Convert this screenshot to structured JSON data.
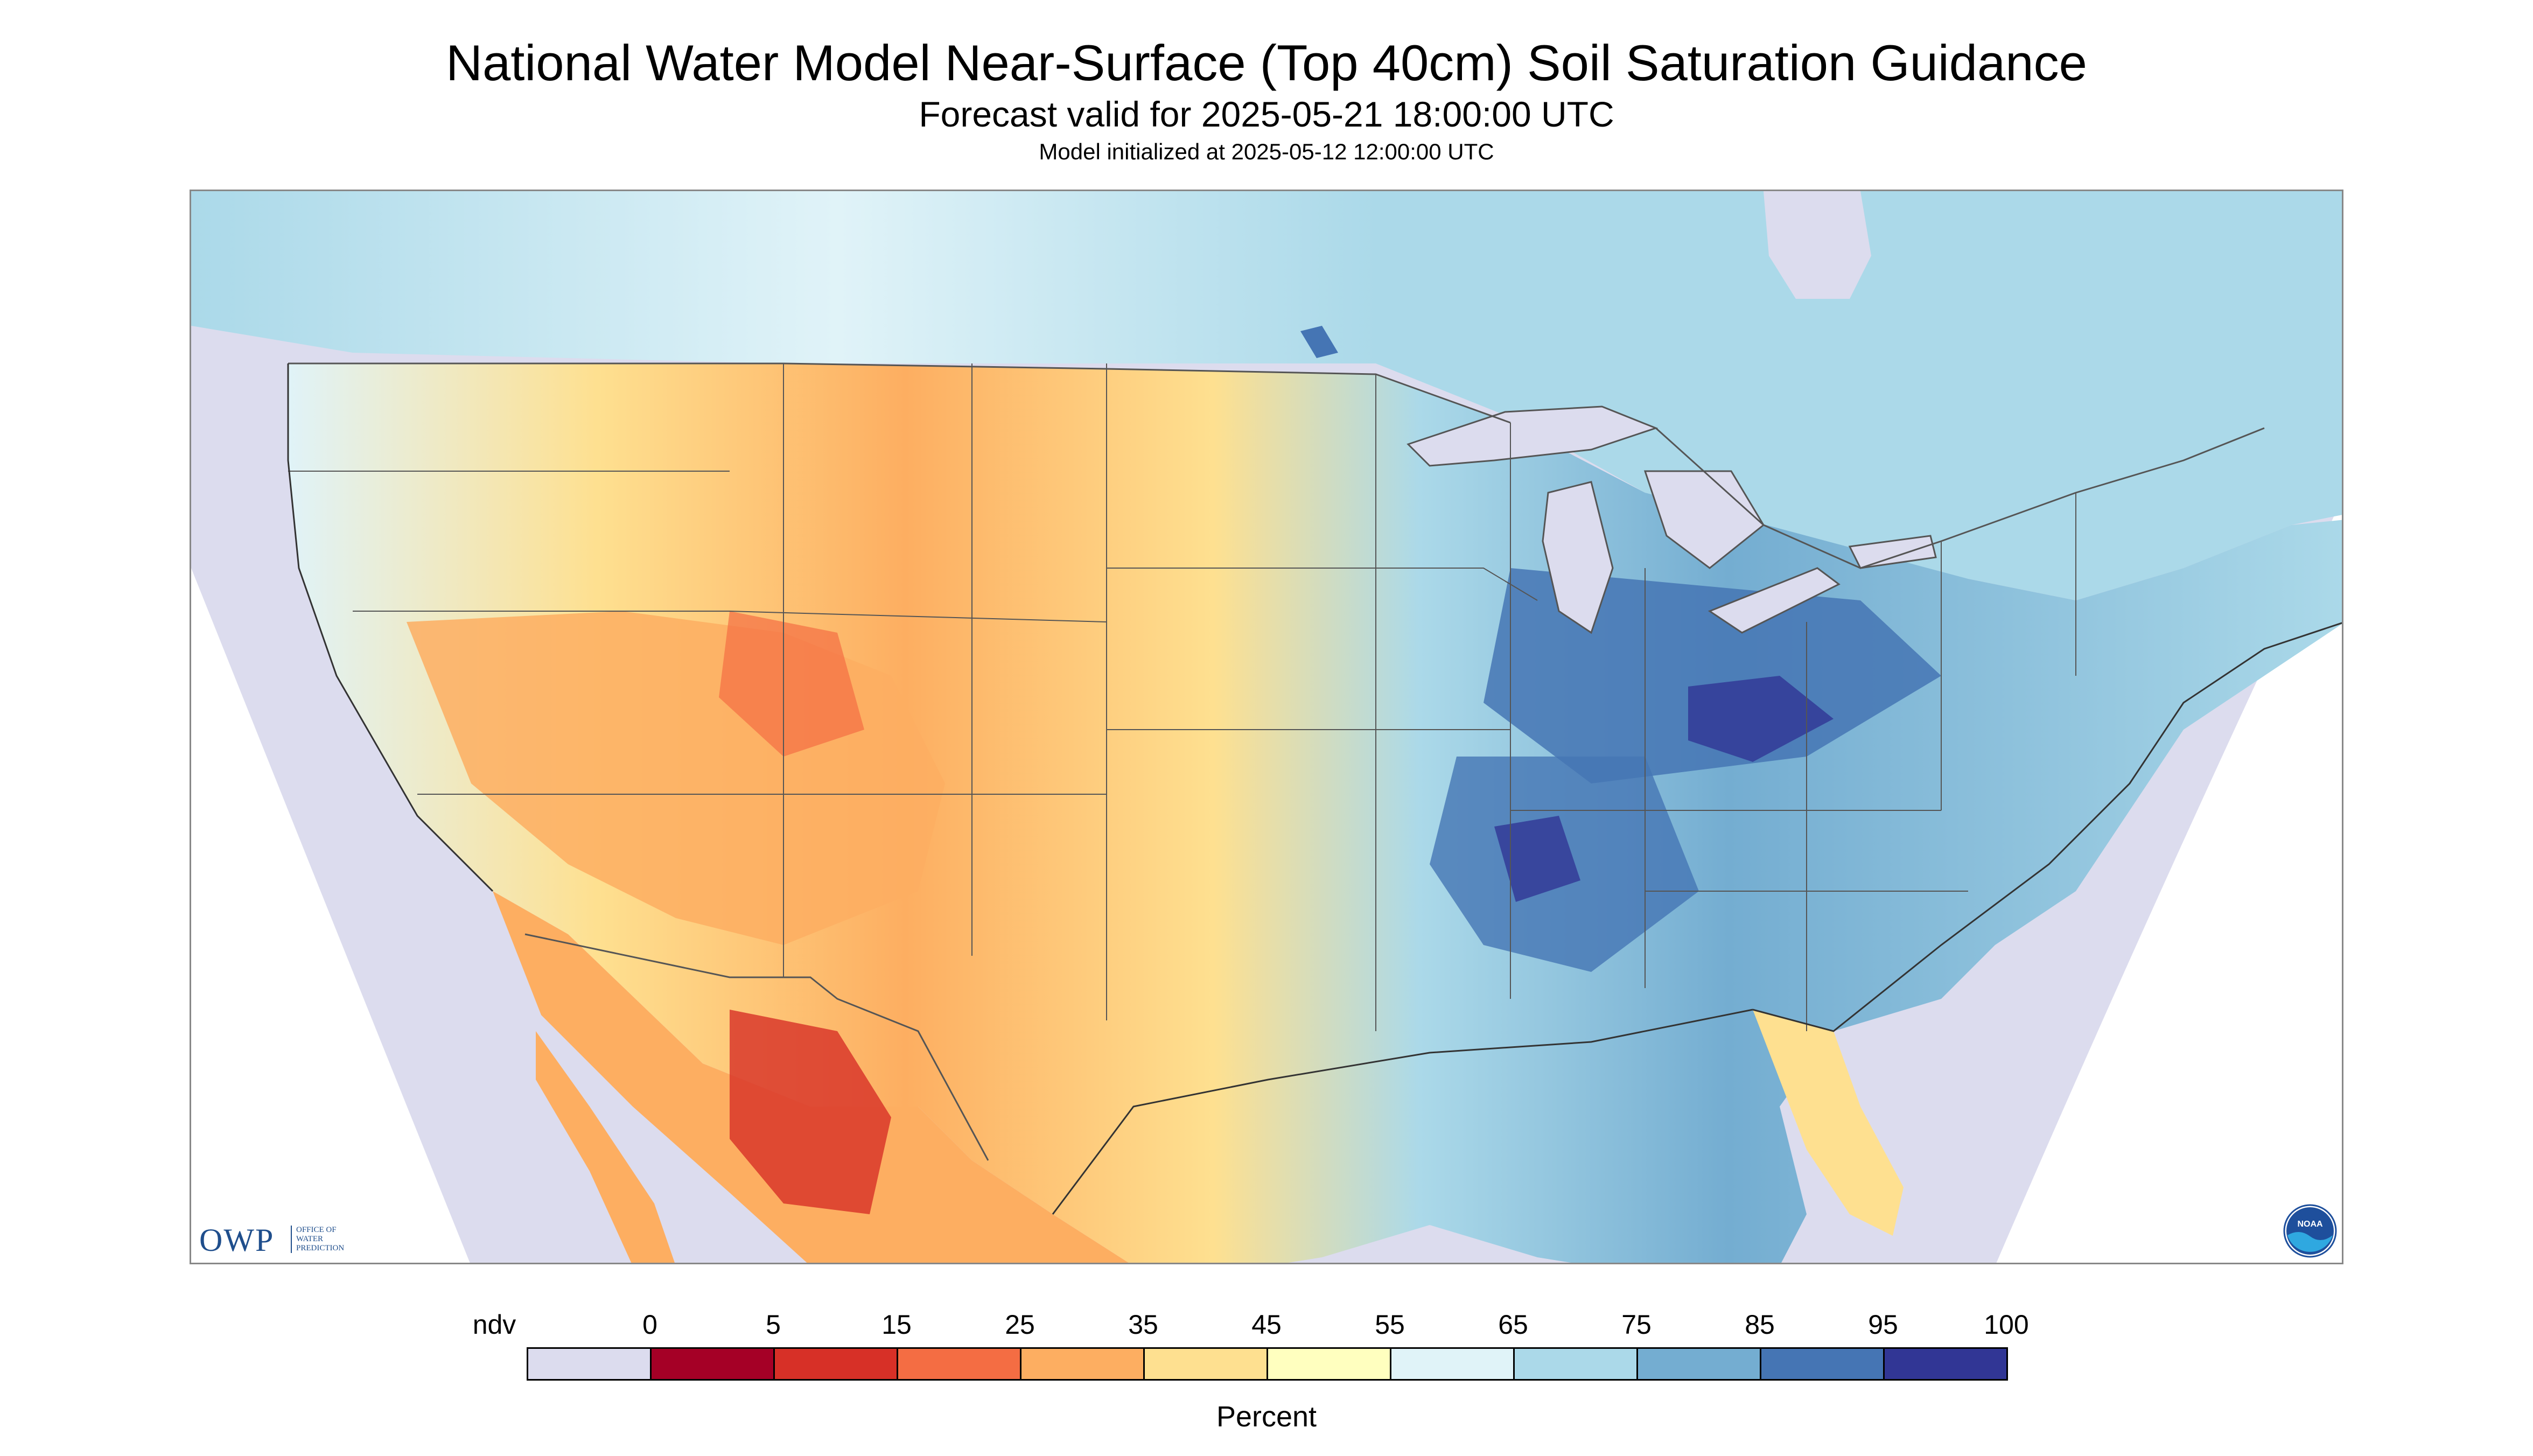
{
  "header": {
    "title": "National Water Model Near-Surface (Top 40cm) Soil Saturation Guidance",
    "subtitle": "Forecast valid for 2025-05-21 18:00:00 UTC",
    "init": "Model initialized at 2025-05-12 12:00:00 UTC"
  },
  "logos": {
    "owp_letters": "OWP",
    "owp_line1": "OFFICE OF",
    "owp_line2": "WATER",
    "owp_line3": "PREDICTION",
    "noaa_text": "NOAA"
  },
  "legend": {
    "labels": [
      "ndv",
      "0",
      "5",
      "15",
      "25",
      "35",
      "45",
      "55",
      "65",
      "75",
      "85",
      "95",
      "100"
    ],
    "colors": [
      "#dcdcee",
      "#a50026",
      "#d73027",
      "#f46d43",
      "#fdae61",
      "#fee090",
      "#ffffbf",
      "#e0f3f8",
      "#abd9e9",
      "#74add1",
      "#4575b4",
      "#313695"
    ],
    "unit": "Percent"
  },
  "map_colors": {
    "nodata": "#dcdcee",
    "water": "#dcdcee",
    "border": "#555555"
  }
}
